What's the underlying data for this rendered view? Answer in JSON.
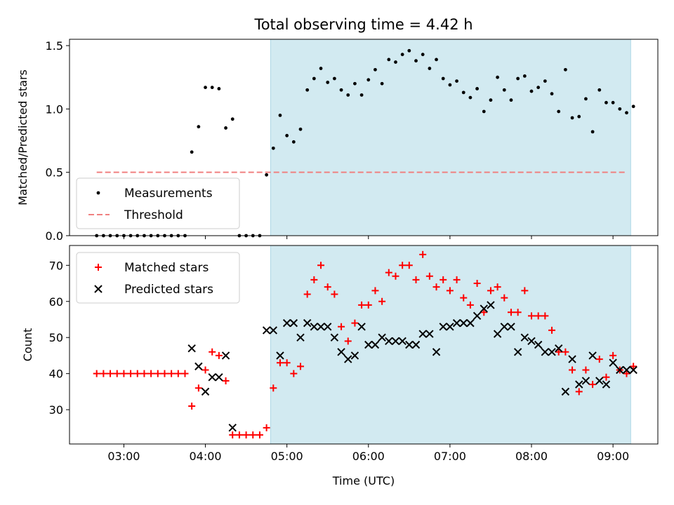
{
  "figure": {
    "title": "Total observing time = 4.42 h",
    "xlabel": "Time (UTC)",
    "x_ticks": [
      "03:00",
      "04:00",
      "05:00",
      "06:00",
      "07:00",
      "08:00",
      "09:00"
    ],
    "x_range": [
      "02:20",
      "09:33"
    ],
    "observing_window": {
      "start": "04:48",
      "end": "09:13",
      "color": "#add8e6"
    }
  },
  "chart_data": [
    {
      "type": "scatter",
      "ylabel": "Matched/Predicted stars",
      "ylim": [
        0,
        1.55
      ],
      "y_ticks": [
        "0.0",
        "0.5",
        "1.0",
        "1.5"
      ],
      "legend": {
        "placement": "lower-left",
        "entries": [
          "Measurements",
          "Threshold"
        ]
      },
      "threshold": {
        "name": "Threshold",
        "value": 0.5,
        "x_start": "02:40",
        "x_end": "09:10",
        "color": "#f08080",
        "style": "dashed"
      },
      "series": [
        {
          "name": "Measurements",
          "color": "#000000",
          "marker": "dot",
          "points": [
            [
              "02:40",
              0
            ],
            [
              "02:45",
              0
            ],
            [
              "02:50",
              0
            ],
            [
              "02:55",
              0
            ],
            [
              "03:00",
              0
            ],
            [
              "03:05",
              0
            ],
            [
              "03:10",
              0
            ],
            [
              "03:15",
              0
            ],
            [
              "03:20",
              0
            ],
            [
              "03:25",
              0
            ],
            [
              "03:30",
              0
            ],
            [
              "03:35",
              0
            ],
            [
              "03:40",
              0
            ],
            [
              "03:45",
              0
            ],
            [
              "03:50",
              0.66
            ],
            [
              "03:55",
              0.86
            ],
            [
              "04:00",
              1.17
            ],
            [
              "04:05",
              1.17
            ],
            [
              "04:10",
              1.16
            ],
            [
              "04:15",
              0.85
            ],
            [
              "04:20",
              0.92
            ],
            [
              "04:25",
              0
            ],
            [
              "04:30",
              0
            ],
            [
              "04:35",
              0
            ],
            [
              "04:40",
              0
            ],
            [
              "04:45",
              0.48
            ],
            [
              "04:50",
              0.69
            ],
            [
              "04:55",
              0.95
            ],
            [
              "05:00",
              0.79
            ],
            [
              "05:05",
              0.74
            ],
            [
              "05:10",
              0.84
            ],
            [
              "05:15",
              1.15
            ],
            [
              "05:20",
              1.24
            ],
            [
              "05:25",
              1.32
            ],
            [
              "05:30",
              1.21
            ],
            [
              "05:35",
              1.24
            ],
            [
              "05:40",
              1.15
            ],
            [
              "05:45",
              1.11
            ],
            [
              "05:50",
              1.2
            ],
            [
              "05:55",
              1.11
            ],
            [
              "06:00",
              1.23
            ],
            [
              "06:05",
              1.31
            ],
            [
              "06:10",
              1.2
            ],
            [
              "06:15",
              1.39
            ],
            [
              "06:20",
              1.37
            ],
            [
              "06:25",
              1.43
            ],
            [
              "06:30",
              1.46
            ],
            [
              "06:35",
              1.38
            ],
            [
              "06:40",
              1.43
            ],
            [
              "06:45",
              1.32
            ],
            [
              "06:50",
              1.39
            ],
            [
              "06:55",
              1.24
            ],
            [
              "07:00",
              1.19
            ],
            [
              "07:05",
              1.22
            ],
            [
              "07:10",
              1.13
            ],
            [
              "07:15",
              1.09
            ],
            [
              "07:20",
              1.16
            ],
            [
              "07:25",
              0.98
            ],
            [
              "07:30",
              1.07
            ],
            [
              "07:35",
              1.25
            ],
            [
              "07:40",
              1.15
            ],
            [
              "07:45",
              1.07
            ],
            [
              "07:50",
              1.24
            ],
            [
              "07:55",
              1.26
            ],
            [
              "08:00",
              1.14
            ],
            [
              "08:05",
              1.17
            ],
            [
              "08:10",
              1.22
            ],
            [
              "08:15",
              1.12
            ],
            [
              "08:20",
              0.98
            ],
            [
              "08:25",
              1.31
            ],
            [
              "08:30",
              0.93
            ],
            [
              "08:35",
              0.94
            ],
            [
              "08:40",
              1.08
            ],
            [
              "08:45",
              0.82
            ],
            [
              "08:50",
              1.15
            ],
            [
              "08:55",
              1.05
            ],
            [
              "09:00",
              1.05
            ],
            [
              "09:05",
              1.0
            ],
            [
              "09:10",
              0.97
            ],
            [
              "09:15",
              1.02
            ]
          ]
        }
      ]
    },
    {
      "type": "scatter",
      "ylabel": "Count",
      "ylim": [
        20.5,
        75.5
      ],
      "y_ticks": [
        "30",
        "40",
        "50",
        "60",
        "70"
      ],
      "legend": {
        "placement": "upper-left",
        "entries": [
          "Matched stars",
          "Predicted stars"
        ]
      },
      "series": [
        {
          "name": "Matched stars",
          "color": "#ff0000",
          "marker": "plus",
          "points": [
            [
              "02:40",
              40
            ],
            [
              "02:45",
              40
            ],
            [
              "02:50",
              40
            ],
            [
              "02:55",
              40
            ],
            [
              "03:00",
              40
            ],
            [
              "03:05",
              40
            ],
            [
              "03:10",
              40
            ],
            [
              "03:15",
              40
            ],
            [
              "03:20",
              40
            ],
            [
              "03:25",
              40
            ],
            [
              "03:30",
              40
            ],
            [
              "03:35",
              40
            ],
            [
              "03:40",
              40
            ],
            [
              "03:45",
              40
            ],
            [
              "03:50",
              31
            ],
            [
              "03:55",
              36
            ],
            [
              "04:00",
              41
            ],
            [
              "04:05",
              46
            ],
            [
              "04:10",
              45
            ],
            [
              "04:15",
              38
            ],
            [
              "04:20",
              23
            ],
            [
              "04:25",
              23
            ],
            [
              "04:30",
              23
            ],
            [
              "04:35",
              23
            ],
            [
              "04:40",
              23
            ],
            [
              "04:45",
              25
            ],
            [
              "04:50",
              36
            ],
            [
              "04:55",
              43
            ],
            [
              "05:00",
              43
            ],
            [
              "05:05",
              40
            ],
            [
              "05:10",
              42
            ],
            [
              "05:15",
              62
            ],
            [
              "05:20",
              66
            ],
            [
              "05:25",
              70
            ],
            [
              "05:30",
              64
            ],
            [
              "05:35",
              62
            ],
            [
              "05:40",
              53
            ],
            [
              "05:45",
              49
            ],
            [
              "05:50",
              54
            ],
            [
              "05:55",
              59
            ],
            [
              "06:00",
              59
            ],
            [
              "06:05",
              63
            ],
            [
              "06:10",
              60
            ],
            [
              "06:15",
              68
            ],
            [
              "06:20",
              67
            ],
            [
              "06:25",
              70
            ],
            [
              "06:30",
              70
            ],
            [
              "06:35",
              66
            ],
            [
              "06:40",
              73
            ],
            [
              "06:45",
              67
            ],
            [
              "06:50",
              64
            ],
            [
              "06:55",
              66
            ],
            [
              "07:00",
              63
            ],
            [
              "07:05",
              66
            ],
            [
              "07:10",
              61
            ],
            [
              "07:15",
              59
            ],
            [
              "07:20",
              65
            ],
            [
              "07:25",
              57
            ],
            [
              "07:30",
              63
            ],
            [
              "07:35",
              64
            ],
            [
              "07:40",
              61
            ],
            [
              "07:45",
              57
            ],
            [
              "07:50",
              57
            ],
            [
              "07:55",
              63
            ],
            [
              "08:00",
              56
            ],
            [
              "08:05",
              56
            ],
            [
              "08:10",
              56
            ],
            [
              "08:15",
              52
            ],
            [
              "08:20",
              46
            ],
            [
              "08:25",
              46
            ],
            [
              "08:30",
              41
            ],
            [
              "08:35",
              35
            ],
            [
              "08:40",
              41
            ],
            [
              "08:45",
              37
            ],
            [
              "08:50",
              44
            ],
            [
              "08:55",
              39
            ],
            [
              "09:00",
              45
            ],
            [
              "09:05",
              41
            ],
            [
              "09:10",
              40
            ],
            [
              "09:15",
              42
            ]
          ]
        },
        {
          "name": "Predicted stars",
          "color": "#000000",
          "marker": "x",
          "points": [
            [
              "03:50",
              47
            ],
            [
              "03:55",
              42
            ],
            [
              "04:00",
              35
            ],
            [
              "04:05",
              39
            ],
            [
              "04:10",
              39
            ],
            [
              "04:15",
              45
            ],
            [
              "04:20",
              25
            ],
            [
              "04:45",
              52
            ],
            [
              "04:50",
              52
            ],
            [
              "04:55",
              45
            ],
            [
              "05:00",
              54
            ],
            [
              "05:05",
              54
            ],
            [
              "05:10",
              50
            ],
            [
              "05:15",
              54
            ],
            [
              "05:20",
              53
            ],
            [
              "05:25",
              53
            ],
            [
              "05:30",
              53
            ],
            [
              "05:35",
              50
            ],
            [
              "05:40",
              46
            ],
            [
              "05:45",
              44
            ],
            [
              "05:50",
              45
            ],
            [
              "05:55",
              53
            ],
            [
              "06:00",
              48
            ],
            [
              "06:05",
              48
            ],
            [
              "06:10",
              50
            ],
            [
              "06:15",
              49
            ],
            [
              "06:20",
              49
            ],
            [
              "06:25",
              49
            ],
            [
              "06:30",
              48
            ],
            [
              "06:35",
              48
            ],
            [
              "06:40",
              51
            ],
            [
              "06:45",
              51
            ],
            [
              "06:50",
              46
            ],
            [
              "06:55",
              53
            ],
            [
              "07:00",
              53
            ],
            [
              "07:05",
              54
            ],
            [
              "07:10",
              54
            ],
            [
              "07:15",
              54
            ],
            [
              "07:20",
              56
            ],
            [
              "07:25",
              58
            ],
            [
              "07:30",
              59
            ],
            [
              "07:35",
              51
            ],
            [
              "07:40",
              53
            ],
            [
              "07:45",
              53
            ],
            [
              "07:50",
              46
            ],
            [
              "07:55",
              50
            ],
            [
              "08:00",
              49
            ],
            [
              "08:05",
              48
            ],
            [
              "08:10",
              46
            ],
            [
              "08:15",
              46
            ],
            [
              "08:20",
              47
            ],
            [
              "08:25",
              35
            ],
            [
              "08:30",
              44
            ],
            [
              "08:35",
              37
            ],
            [
              "08:40",
              38
            ],
            [
              "08:45",
              45
            ],
            [
              "08:50",
              38
            ],
            [
              "08:55",
              37
            ],
            [
              "09:00",
              43
            ],
            [
              "09:05",
              41
            ],
            [
              "09:10",
              41
            ],
            [
              "09:15",
              41
            ]
          ]
        }
      ]
    }
  ]
}
